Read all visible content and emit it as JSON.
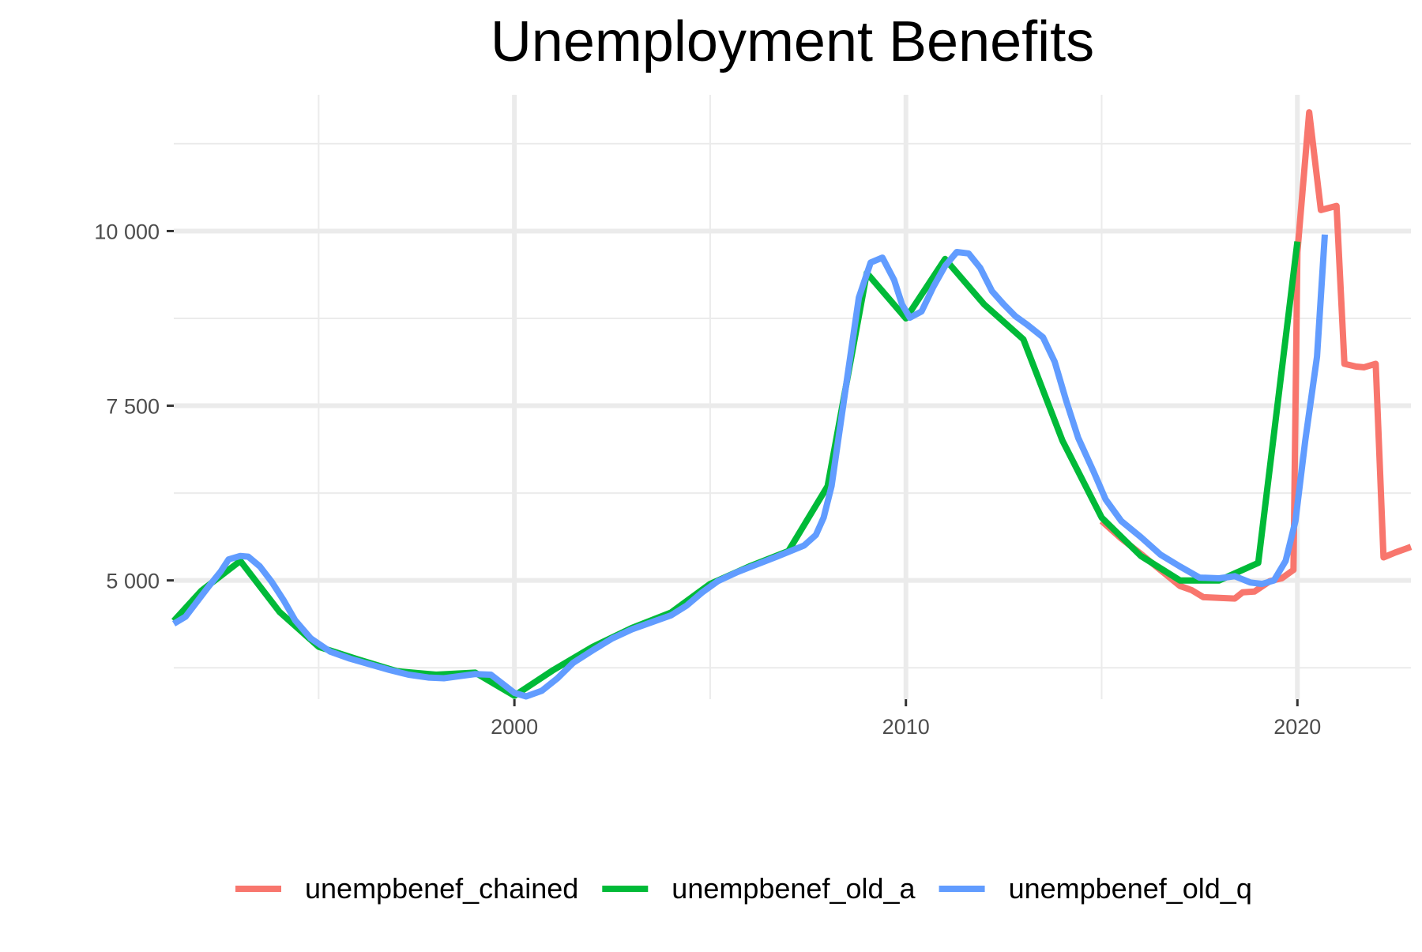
{
  "chart_data": {
    "type": "line",
    "title": "Unemployment Benefits",
    "xlabel": "",
    "ylabel": "",
    "xlim": [
      1991.3,
      2022.9
    ],
    "ylim": [
      3300,
      11950
    ],
    "x_ticks": [
      {
        "value": 2000,
        "label": "2000"
      },
      {
        "value": 2010,
        "label": "2010"
      },
      {
        "value": 2020,
        "label": "2020"
      }
    ],
    "x_minor_ticks": [
      1995,
      2005,
      2015
    ],
    "y_ticks": [
      {
        "value": 5000,
        "label": "5 000"
      },
      {
        "value": 7500,
        "label": "7 500"
      },
      {
        "value": 10000,
        "label": "10 000"
      }
    ],
    "y_minor_ticks": [
      3750,
      6250,
      8750,
      11250
    ],
    "grid": true,
    "legend_position": "bottom",
    "colors": {
      "background": "#ffffff",
      "grid": "#ebebeb",
      "text": "#4d4d4d",
      "title": "#000000",
      "tick_mark": "#333333"
    },
    "series": [
      {
        "name": "unempbenef_chained",
        "color": "#F8766D",
        "points": [
          [
            2015.0,
            5850
          ],
          [
            2015.5,
            5600
          ],
          [
            2016.0,
            5380
          ],
          [
            2016.5,
            5150
          ],
          [
            2017.0,
            4920
          ],
          [
            2017.3,
            4860
          ],
          [
            2017.6,
            4760
          ],
          [
            2018.0,
            4750
          ],
          [
            2018.4,
            4740
          ],
          [
            2018.6,
            4830
          ],
          [
            2018.9,
            4840
          ],
          [
            2019.3,
            4990
          ],
          [
            2019.6,
            5030
          ],
          [
            2019.9,
            5150
          ],
          [
            2020.0,
            9700
          ],
          [
            2020.3,
            11700
          ],
          [
            2020.6,
            10300
          ],
          [
            2020.8,
            10330
          ],
          [
            2021.0,
            10360
          ],
          [
            2021.2,
            8100
          ],
          [
            2021.5,
            8060
          ],
          [
            2021.7,
            8050
          ],
          [
            2022.0,
            8100
          ],
          [
            2022.2,
            5330
          ],
          [
            2022.5,
            5400
          ],
          [
            2022.9,
            5480
          ]
        ]
      },
      {
        "name": "unempbenef_old_a",
        "color": "#00BA38",
        "points": [
          [
            1991.3,
            4420
          ],
          [
            1992.0,
            4850
          ],
          [
            1993.0,
            5280
          ],
          [
            1994.0,
            4550
          ],
          [
            1995.0,
            4050
          ],
          [
            1996.0,
            3870
          ],
          [
            1997.0,
            3700
          ],
          [
            1998.0,
            3650
          ],
          [
            1999.0,
            3680
          ],
          [
            2000.0,
            3350
          ],
          [
            2001.0,
            3720
          ],
          [
            2002.0,
            4050
          ],
          [
            2003.0,
            4320
          ],
          [
            2004.0,
            4540
          ],
          [
            2005.0,
            4950
          ],
          [
            2006.0,
            5200
          ],
          [
            2007.0,
            5420
          ],
          [
            2008.0,
            6350
          ],
          [
            2009.0,
            9400
          ],
          [
            2010.0,
            8750
          ],
          [
            2011.0,
            9600
          ],
          [
            2012.0,
            8950
          ],
          [
            2013.0,
            8450
          ],
          [
            2014.0,
            7000
          ],
          [
            2015.0,
            5900
          ],
          [
            2016.0,
            5350
          ],
          [
            2017.0,
            5000
          ],
          [
            2018.0,
            5000
          ],
          [
            2019.0,
            5250
          ],
          [
            2020.0,
            9850
          ]
        ]
      },
      {
        "name": "unempbenef_old_q",
        "color": "#619CFF",
        "points": [
          [
            1991.3,
            4380
          ],
          [
            1991.6,
            4480
          ],
          [
            1991.9,
            4700
          ],
          [
            1992.2,
            4920
          ],
          [
            1992.5,
            5130
          ],
          [
            1992.7,
            5300
          ],
          [
            1993.0,
            5350
          ],
          [
            1993.2,
            5340
          ],
          [
            1993.5,
            5200
          ],
          [
            1993.8,
            4980
          ],
          [
            1994.1,
            4720
          ],
          [
            1994.4,
            4430
          ],
          [
            1994.8,
            4170
          ],
          [
            1995.3,
            3980
          ],
          [
            1995.8,
            3880
          ],
          [
            1996.3,
            3800
          ],
          [
            1996.8,
            3720
          ],
          [
            1997.3,
            3650
          ],
          [
            1997.8,
            3610
          ],
          [
            1998.2,
            3600
          ],
          [
            1998.6,
            3630
          ],
          [
            1999.0,
            3660
          ],
          [
            1999.4,
            3650
          ],
          [
            1999.7,
            3520
          ],
          [
            2000.0,
            3390
          ],
          [
            2000.3,
            3340
          ],
          [
            2000.7,
            3420
          ],
          [
            2001.1,
            3600
          ],
          [
            2001.5,
            3820
          ],
          [
            2002.0,
            4000
          ],
          [
            2002.5,
            4170
          ],
          [
            2003.0,
            4300
          ],
          [
            2003.5,
            4400
          ],
          [
            2004.0,
            4500
          ],
          [
            2004.4,
            4640
          ],
          [
            2004.8,
            4830
          ],
          [
            2005.2,
            4990
          ],
          [
            2005.7,
            5120
          ],
          [
            2006.2,
            5230
          ],
          [
            2006.7,
            5340
          ],
          [
            2007.1,
            5430
          ],
          [
            2007.4,
            5500
          ],
          [
            2007.7,
            5650
          ],
          [
            2007.9,
            5900
          ],
          [
            2008.1,
            6350
          ],
          [
            2008.5,
            7900
          ],
          [
            2008.8,
            9050
          ],
          [
            2009.1,
            9550
          ],
          [
            2009.4,
            9620
          ],
          [
            2009.7,
            9300
          ],
          [
            2009.9,
            8950
          ],
          [
            2010.1,
            8760
          ],
          [
            2010.4,
            8850
          ],
          [
            2010.7,
            9200
          ],
          [
            2011.0,
            9500
          ],
          [
            2011.3,
            9700
          ],
          [
            2011.6,
            9680
          ],
          [
            2011.9,
            9470
          ],
          [
            2012.2,
            9140
          ],
          [
            2012.5,
            8950
          ],
          [
            2012.8,
            8780
          ],
          [
            2013.1,
            8660
          ],
          [
            2013.5,
            8480
          ],
          [
            2013.8,
            8130
          ],
          [
            2014.1,
            7560
          ],
          [
            2014.4,
            7040
          ],
          [
            2014.8,
            6550
          ],
          [
            2015.1,
            6160
          ],
          [
            2015.5,
            5850
          ],
          [
            2016.0,
            5620
          ],
          [
            2016.5,
            5370
          ],
          [
            2017.0,
            5200
          ],
          [
            2017.5,
            5040
          ],
          [
            2018.0,
            5030
          ],
          [
            2018.4,
            5060
          ],
          [
            2018.8,
            4970
          ],
          [
            2019.1,
            4950
          ],
          [
            2019.4,
            5000
          ],
          [
            2019.7,
            5280
          ],
          [
            2019.95,
            5850
          ],
          [
            2020.2,
            7000
          ],
          [
            2020.5,
            8200
          ],
          [
            2020.7,
            9950
          ]
        ]
      }
    ]
  }
}
